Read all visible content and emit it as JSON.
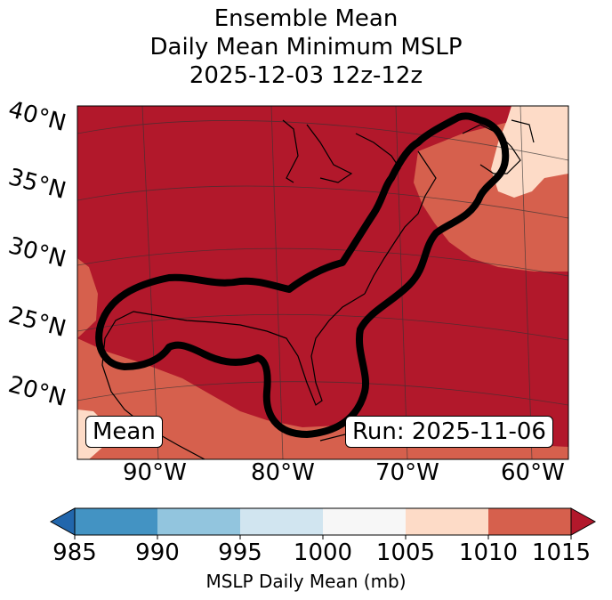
{
  "title": {
    "line1": "Ensemble Mean",
    "line2": "Daily Mean Minimum MSLP",
    "line3": "2025-12-03 12z-12z"
  },
  "map": {
    "lat_labels": [
      "40°N",
      "35°N",
      "30°N",
      "25°N",
      "20°N"
    ],
    "lon_labels": [
      "90°W",
      "80°W",
      "70°W",
      "60°W"
    ],
    "mean_label": "Mean",
    "run_label": "Run: 2025-11-06"
  },
  "colorbar": {
    "label": "MSLP Daily Mean (mb)",
    "ticks": [
      "985",
      "990",
      "995",
      "1000",
      "1005",
      "1010",
      "1015"
    ],
    "colors": {
      "under": "#2166ac",
      "c985_990": "#4393c3",
      "c990_995": "#92c5de",
      "c995_1000": "#d1e5f0",
      "c1000_1005": "#f7f7f7",
      "c1005_1010": "#fddbc7",
      "c1010_1015": "#d6604d",
      "over": "#b2182b"
    }
  }
}
